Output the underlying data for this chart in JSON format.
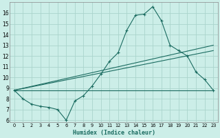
{
  "xlabel": "Humidex (Indice chaleur)",
  "bg_color": "#cceee8",
  "grid_color": "#aad4cc",
  "line_color": "#1a6b60",
  "xlim": [
    -0.5,
    23.5
  ],
  "ylim": [
    5.8,
    17.0
  ],
  "yticks": [
    6,
    7,
    8,
    9,
    10,
    11,
    12,
    13,
    14,
    15,
    16
  ],
  "xticks": [
    0,
    1,
    2,
    3,
    4,
    5,
    6,
    7,
    8,
    9,
    10,
    11,
    12,
    13,
    14,
    15,
    16,
    17,
    18,
    19,
    20,
    21,
    22,
    23
  ],
  "line1_x": [
    0,
    1,
    2,
    3,
    4,
    5,
    6,
    7,
    8,
    9,
    10,
    11,
    12,
    13,
    14,
    15,
    16,
    17,
    18,
    19,
    20,
    21,
    22,
    23
  ],
  "line1_y": [
    8.8,
    8.0,
    7.5,
    7.3,
    7.2,
    7.0,
    6.0,
    7.8,
    8.3,
    9.2,
    10.3,
    11.5,
    12.3,
    14.4,
    15.8,
    15.9,
    16.6,
    15.3,
    13.0,
    12.5,
    12.0,
    10.5,
    9.8,
    8.8
  ],
  "line2_x": [
    0,
    23
  ],
  "line2_y": [
    8.8,
    13.0
  ],
  "line3_x": [
    0,
    23
  ],
  "line3_y": [
    8.8,
    12.5
  ],
  "line4_x": [
    0,
    23
  ],
  "line4_y": [
    8.8,
    8.8
  ]
}
